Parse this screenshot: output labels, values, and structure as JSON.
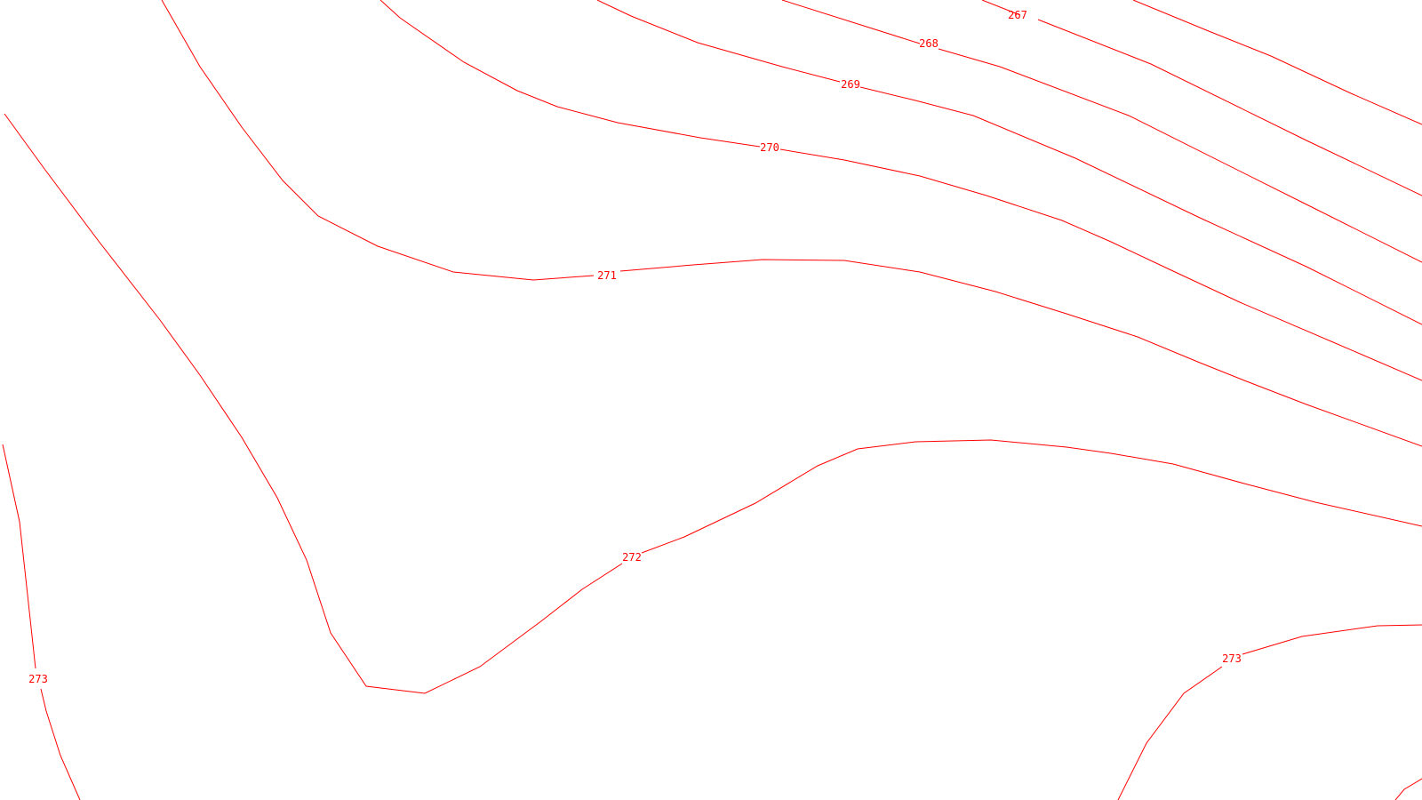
{
  "map": {
    "type": "contour-plot",
    "line_color": "#ff0000",
    "background_color": "#ffffff",
    "contours": [
      {
        "id": "c267",
        "level": "267"
      },
      {
        "id": "c268",
        "level": "268"
      },
      {
        "id": "c269",
        "level": "269"
      },
      {
        "id": "c270",
        "level": "270"
      },
      {
        "id": "c271",
        "level": "271"
      },
      {
        "id": "c272",
        "level": "272"
      },
      {
        "id": "c273a",
        "level": "273"
      },
      {
        "id": "c273b",
        "level": "273"
      }
    ]
  }
}
